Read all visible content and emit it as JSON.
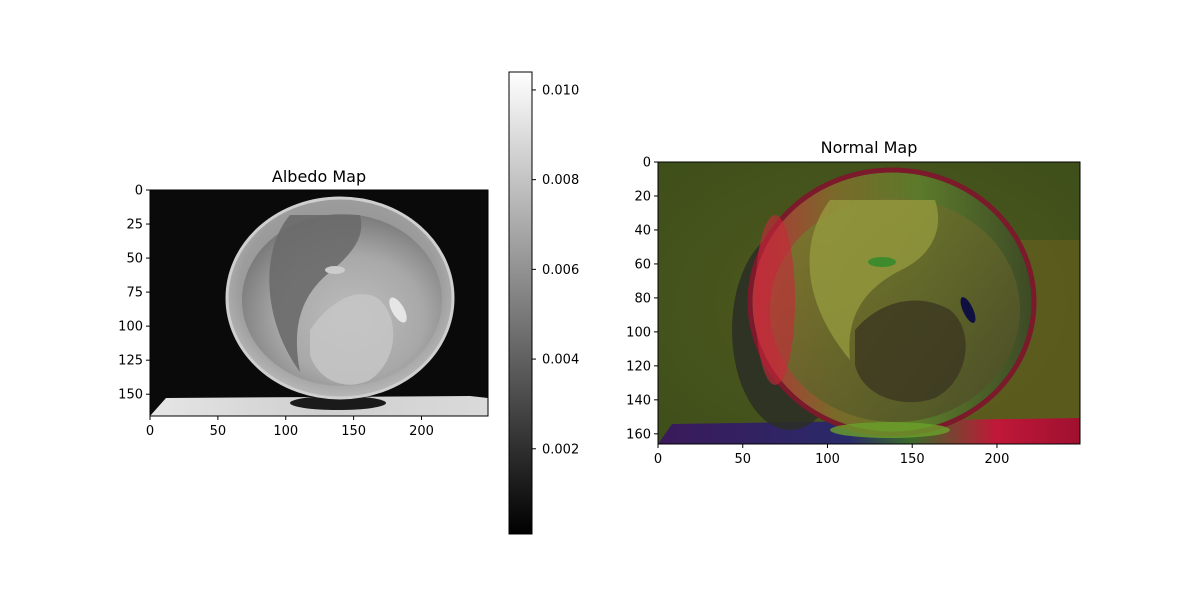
{
  "chart_data": [
    {
      "type": "heatmap",
      "title": "Albedo Map",
      "xlabel": "",
      "ylabel": "",
      "xlim": [
        0,
        249
      ],
      "ylim": [
        166,
        0
      ],
      "x_ticks": [
        0,
        50,
        100,
        150,
        200
      ],
      "y_ticks": [
        0,
        25,
        50,
        75,
        100,
        125,
        150
      ],
      "colormap": "gray",
      "colorbar": {
        "range": [
          0.0001,
          0.0104
        ],
        "ticks": [
          "0.002",
          "0.004",
          "0.006",
          "0.008",
          "0.010"
        ],
        "tick_values": [
          0.002,
          0.004,
          0.006,
          0.008,
          0.01
        ]
      },
      "content": "bowl"
    },
    {
      "type": "heatmap",
      "title": "Normal Map",
      "xlabel": "",
      "ylabel": "",
      "xlim": [
        0,
        249
      ],
      "ylim": [
        166,
        0
      ],
      "x_ticks": [
        0,
        50,
        100,
        150,
        200
      ],
      "y_ticks": [
        0,
        20,
        40,
        60,
        80,
        100,
        120,
        140,
        160
      ],
      "colormap": "rgb",
      "content": "bowl"
    }
  ]
}
